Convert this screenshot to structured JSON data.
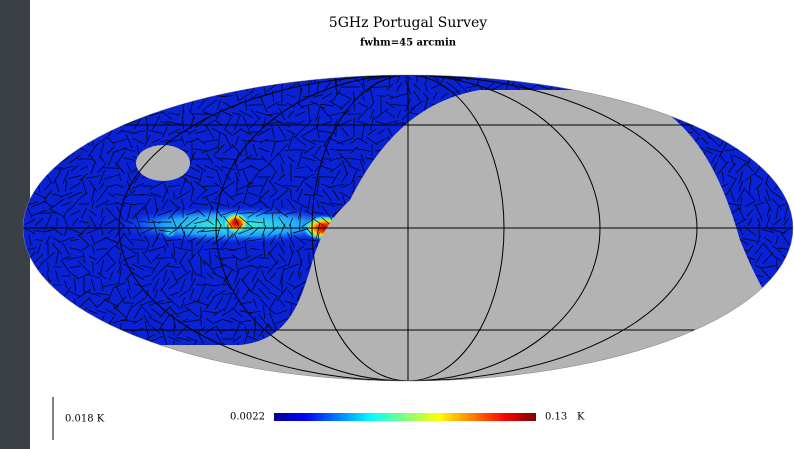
{
  "header": {
    "title": "5GHz Portugal Survey",
    "subtitle": "fwhm=45 arcmin"
  },
  "colorbar": {
    "min": "0.0022",
    "max": "0.13",
    "unit": "K"
  },
  "vector_scale": "0.018 K"
}
